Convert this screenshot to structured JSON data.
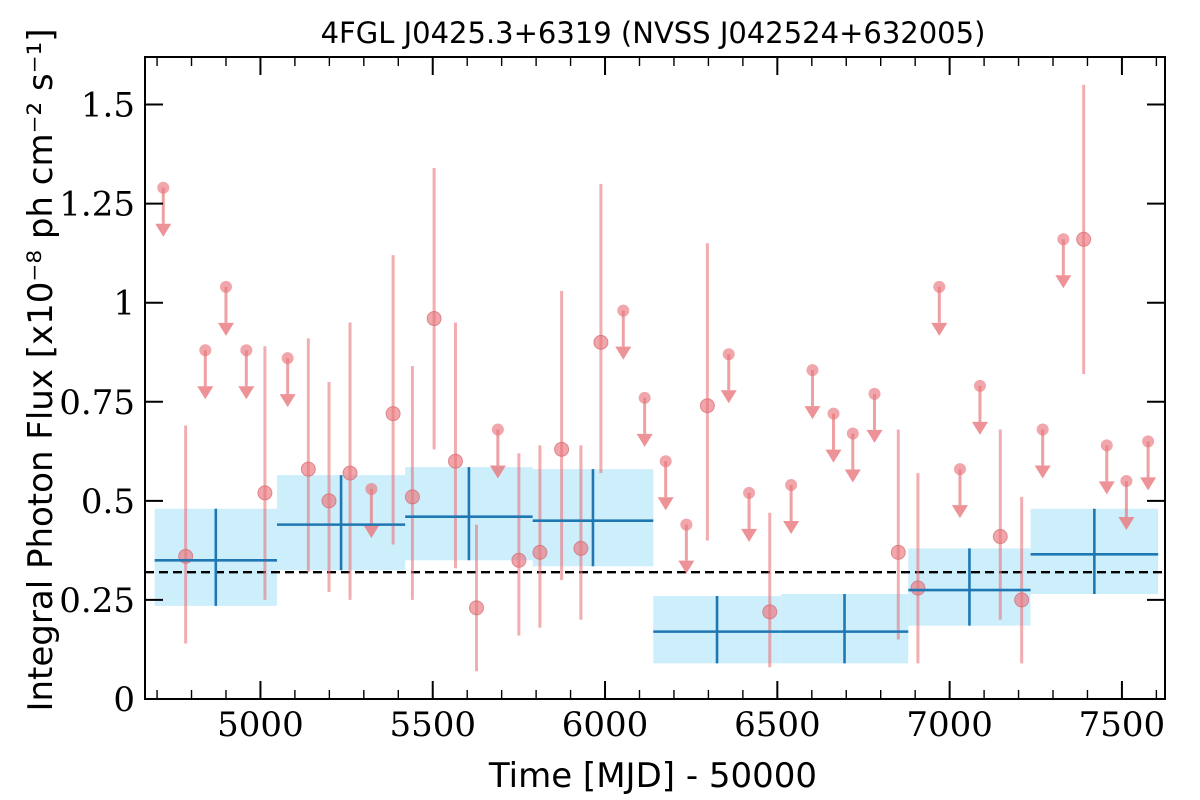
{
  "chart_data": {
    "type": "scatter",
    "title": "4FGL J0425.3+6319 (NVSS J042524+632005)",
    "xlabel": "Time [MJD] - 50000",
    "ylabel": "Integral Photon Flux [x10⁻⁸ ph cm⁻² s⁻¹]",
    "xlim": [
      4665,
      7625
    ],
    "ylim": [
      0,
      1.62
    ],
    "x_ticks": [
      5000,
      5500,
      6000,
      6500,
      7000,
      7500
    ],
    "x_tick_labels": [
      "5000",
      "5500",
      "6000",
      "6500",
      "7000",
      "7500"
    ],
    "y_ticks": [
      0,
      0.25,
      0.5,
      0.75,
      1,
      1.25,
      1.5
    ],
    "y_tick_labels": [
      "0",
      "0.25",
      "0.5",
      "0.75",
      "1",
      "1.25",
      "1.5"
    ],
    "reference_line": {
      "y": 0.32,
      "style": "dashed",
      "color": "#000000"
    },
    "colors": {
      "points": "#e8777c",
      "bins": "#1f77b4",
      "bin_band": "#cdeefb"
    },
    "series": [
      {
        "name": "",
        "kind": "detections",
        "points": [
          {
            "x": 4783,
            "y": 0.36,
            "lo": 0.14,
            "hi": 0.69
          },
          {
            "x": 5013,
            "y": 0.52,
            "lo": 0.25,
            "hi": 0.89
          },
          {
            "x": 5139,
            "y": 0.58,
            "lo": 0.32,
            "hi": 0.91
          },
          {
            "x": 5199,
            "y": 0.5,
            "lo": 0.27,
            "hi": 0.8
          },
          {
            "x": 5260,
            "y": 0.57,
            "lo": 0.25,
            "hi": 0.95
          },
          {
            "x": 5385,
            "y": 0.72,
            "lo": 0.39,
            "hi": 1.12
          },
          {
            "x": 5441,
            "y": 0.51,
            "lo": 0.25,
            "hi": 0.84
          },
          {
            "x": 5504,
            "y": 0.96,
            "lo": 0.63,
            "hi": 1.34
          },
          {
            "x": 5566,
            "y": 0.6,
            "lo": 0.33,
            "hi": 0.95
          },
          {
            "x": 5627,
            "y": 0.23,
            "lo": 0.07,
            "hi": 0.44
          },
          {
            "x": 5750,
            "y": 0.35,
            "lo": 0.16,
            "hi": 0.62
          },
          {
            "x": 5811,
            "y": 0.37,
            "lo": 0.18,
            "hi": 0.64
          },
          {
            "x": 5874,
            "y": 0.63,
            "lo": 0.3,
            "hi": 1.03
          },
          {
            "x": 5930,
            "y": 0.38,
            "lo": 0.2,
            "hi": 0.64
          },
          {
            "x": 5988,
            "y": 0.9,
            "lo": 0.57,
            "hi": 1.3
          },
          {
            "x": 6297,
            "y": 0.74,
            "lo": 0.4,
            "hi": 1.15
          },
          {
            "x": 6478,
            "y": 0.22,
            "lo": 0.08,
            "hi": 0.47
          },
          {
            "x": 6851,
            "y": 0.37,
            "lo": 0.15,
            "hi": 0.68
          },
          {
            "x": 6908,
            "y": 0.28,
            "lo": 0.09,
            "hi": 0.57
          },
          {
            "x": 7147,
            "y": 0.41,
            "lo": 0.2,
            "hi": 0.68
          },
          {
            "x": 7209,
            "y": 0.25,
            "lo": 0.09,
            "hi": 0.51
          },
          {
            "x": 7389,
            "y": 1.16,
            "lo": 0.82,
            "hi": 1.55
          }
        ]
      },
      {
        "name": "",
        "kind": "upper_limits",
        "points": [
          {
            "x": 4718,
            "y": 1.29
          },
          {
            "x": 4840,
            "y": 0.88
          },
          {
            "x": 4900,
            "y": 1.04
          },
          {
            "x": 4959,
            "y": 0.88
          },
          {
            "x": 5079,
            "y": 0.86
          },
          {
            "x": 5322,
            "y": 0.53
          },
          {
            "x": 5689,
            "y": 0.68
          },
          {
            "x": 6053,
            "y": 0.98
          },
          {
            "x": 6115,
            "y": 0.76
          },
          {
            "x": 6176,
            "y": 0.6
          },
          {
            "x": 6236,
            "y": 0.44
          },
          {
            "x": 6359,
            "y": 0.87
          },
          {
            "x": 6418,
            "y": 0.52
          },
          {
            "x": 6540,
            "y": 0.54
          },
          {
            "x": 6602,
            "y": 0.83
          },
          {
            "x": 6663,
            "y": 0.72
          },
          {
            "x": 6719,
            "y": 0.67
          },
          {
            "x": 6782,
            "y": 0.77
          },
          {
            "x": 6970,
            "y": 1.04
          },
          {
            "x": 7030,
            "y": 0.58
          },
          {
            "x": 7088,
            "y": 0.79
          },
          {
            "x": 7270,
            "y": 0.68
          },
          {
            "x": 7330,
            "y": 1.16
          },
          {
            "x": 7456,
            "y": 0.64
          },
          {
            "x": 7513,
            "y": 0.55
          },
          {
            "x": 7576,
            "y": 0.65
          }
        ]
      },
      {
        "name": "",
        "kind": "binned",
        "bins": [
          {
            "x0": 4693,
            "x1": 5048,
            "y": 0.35,
            "lo": 0.235,
            "hi": 0.48,
            "band_lo": 0.235,
            "band_hi": 0.48
          },
          {
            "x0": 5048,
            "x1": 5420,
            "y": 0.44,
            "lo": 0.325,
            "hi": 0.565,
            "band_lo": 0.325,
            "band_hi": 0.565
          },
          {
            "x0": 5420,
            "x1": 5790,
            "y": 0.46,
            "lo": 0.35,
            "hi": 0.585,
            "band_lo": 0.35,
            "band_hi": 0.585
          },
          {
            "x0": 5790,
            "x1": 6140,
            "y": 0.45,
            "lo": 0.335,
            "hi": 0.58,
            "band_lo": 0.335,
            "band_hi": 0.58
          },
          {
            "x0": 6140,
            "x1": 6510,
            "y": 0.17,
            "lo": 0.09,
            "hi": 0.26,
            "band_lo": 0.09,
            "band_hi": 0.26
          },
          {
            "x0": 6510,
            "x1": 6880,
            "y": 0.17,
            "lo": 0.09,
            "hi": 0.265,
            "band_lo": 0.09,
            "band_hi": 0.265
          },
          {
            "x0": 6880,
            "x1": 7235,
            "y": 0.275,
            "lo": 0.185,
            "hi": 0.38,
            "band_lo": 0.185,
            "band_hi": 0.38
          },
          {
            "x0": 7235,
            "x1": 7605,
            "y": 0.365,
            "lo": 0.265,
            "hi": 0.48,
            "band_lo": 0.265,
            "band_hi": 0.48
          }
        ]
      }
    ]
  }
}
